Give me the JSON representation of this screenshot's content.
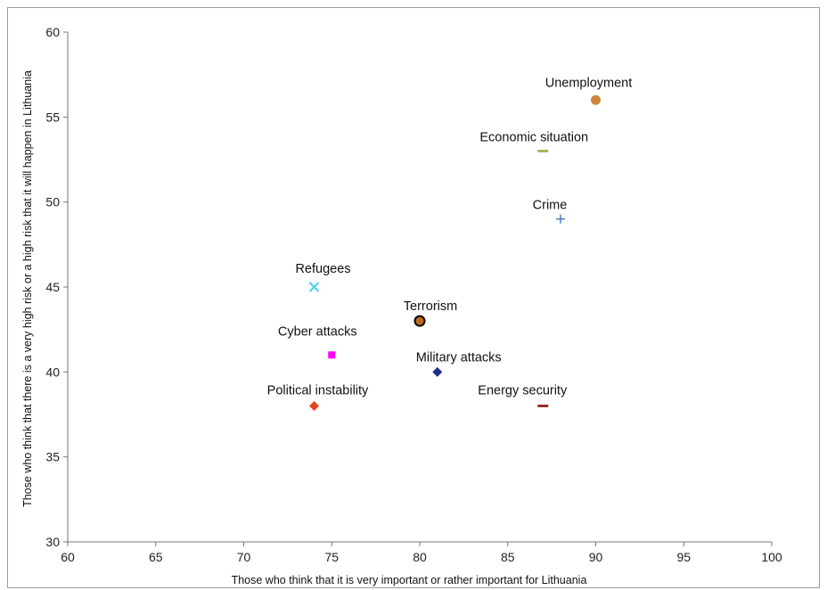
{
  "chart_data": {
    "type": "scatter",
    "title": "",
    "xlabel": "Those who think that it is very important or rather important for Lithuania",
    "ylabel": "Those who think that there is a very high risk or a high risk that it will happen in  Lithuania",
    "xlim": [
      60,
      100
    ],
    "ylim": [
      30,
      60
    ],
    "x_ticks": [
      60,
      65,
      70,
      75,
      80,
      85,
      90,
      95,
      100
    ],
    "y_ticks": [
      30,
      35,
      40,
      45,
      50,
      55,
      60
    ],
    "grid": false,
    "legend": "none",
    "points": [
      {
        "label": "Unemployment",
        "x": 90,
        "y": 56,
        "marker": "circle",
        "color": "#d2843e"
      },
      {
        "label": "Economic situation",
        "x": 87,
        "y": 53,
        "marker": "dash",
        "color": "#9bbb59"
      },
      {
        "label": "Crime",
        "x": 88,
        "y": 49,
        "marker": "plus",
        "color": "#4f81bd"
      },
      {
        "label": "Refugees",
        "x": 74,
        "y": 45,
        "marker": "x",
        "color": "#4bd0e6"
      },
      {
        "label": "Terrorism",
        "x": 80,
        "y": 43,
        "marker": "circle-outlined",
        "color": "#c0691a"
      },
      {
        "label": "Cyber attacks",
        "x": 75,
        "y": 41,
        "marker": "square",
        "color": "#ff00ff"
      },
      {
        "label": "Military attacks",
        "x": 81,
        "y": 40,
        "marker": "diamond",
        "color": "#1f2f8f"
      },
      {
        "label": "Political instability",
        "x": 74,
        "y": 38,
        "marker": "diamond",
        "color": "#e8431a"
      },
      {
        "label": "Energy security",
        "x": 87,
        "y": 38,
        "marker": "dash",
        "color": "#9b2a2a"
      }
    ]
  }
}
